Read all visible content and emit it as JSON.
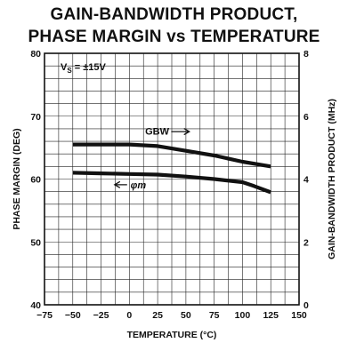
{
  "chart_data": {
    "type": "line",
    "title_line1": "GAIN-BANDWIDTH PRODUCT,",
    "title_line2": "PHASE MARGIN vs TEMPERATURE",
    "xlabel": "TEMPERATURE (°C)",
    "ylabel_left": "PHASE MARGIN (DEG)",
    "ylabel_right": "GAIN-BANDWIDTH PRODUCT (MHz)",
    "xlim": [
      -75,
      150
    ],
    "ylim_left": [
      40,
      80
    ],
    "ylim_right": [
      0,
      8
    ],
    "x_ticks": [
      "-75",
      "-50",
      "-25",
      "0",
      "25",
      "50",
      "75",
      "100",
      "125",
      "150"
    ],
    "y_ticks_left": [
      "40",
      "50",
      "60",
      "70",
      "80"
    ],
    "y_ticks_right": [
      "0",
      "2",
      "4",
      "6",
      "8"
    ],
    "grid": true,
    "condition_prefix": "V",
    "condition_subscript": "S",
    "condition_value": " = ±15V",
    "series": [
      {
        "name": "GBW",
        "axis": "right",
        "x": [
          -50,
          -25,
          0,
          25,
          50,
          75,
          100,
          125
        ],
        "y": [
          5.1,
          5.1,
          5.1,
          5.05,
          4.9,
          4.75,
          4.55,
          4.4
        ]
      },
      {
        "name": "φm",
        "axis": "left",
        "x": [
          -50,
          -25,
          0,
          25,
          50,
          75,
          100,
          110,
          125
        ],
        "y": [
          61.0,
          60.9,
          60.8,
          60.7,
          60.4,
          60.0,
          59.5,
          58.9,
          57.9
        ]
      }
    ]
  }
}
